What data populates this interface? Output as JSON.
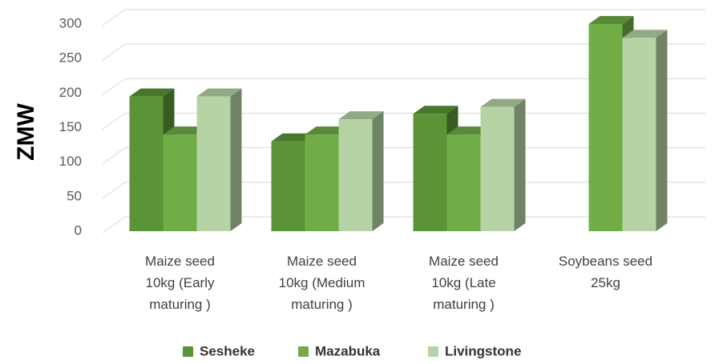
{
  "chart_data": {
    "type": "bar3d",
    "y_label": "ZMW",
    "categories": [
      "Maize seed\n10kg  (Early\nmaturing )",
      "Maize seed\n10kg  (Medium\nmaturing )",
      "Maize seed\n10kg  (Late\nmaturing )",
      "Soybeans seed\n25kg"
    ],
    "series": [
      {
        "name": "Sesheke",
        "color": "#5b9337",
        "values": [
          195,
          130,
          170,
          null
        ]
      },
      {
        "name": "Mazabuka",
        "color": "#70ad47",
        "values": [
          140,
          140,
          140,
          300
        ]
      },
      {
        "name": "Livingstone",
        "color": "#b5d3a5",
        "values": [
          195,
          162,
          180,
          280
        ]
      }
    ],
    "ylim": [
      0,
      300
    ],
    "yticks": [
      0,
      50,
      100,
      150,
      200,
      250,
      300
    ],
    "grid": true,
    "legend": "bottom"
  }
}
